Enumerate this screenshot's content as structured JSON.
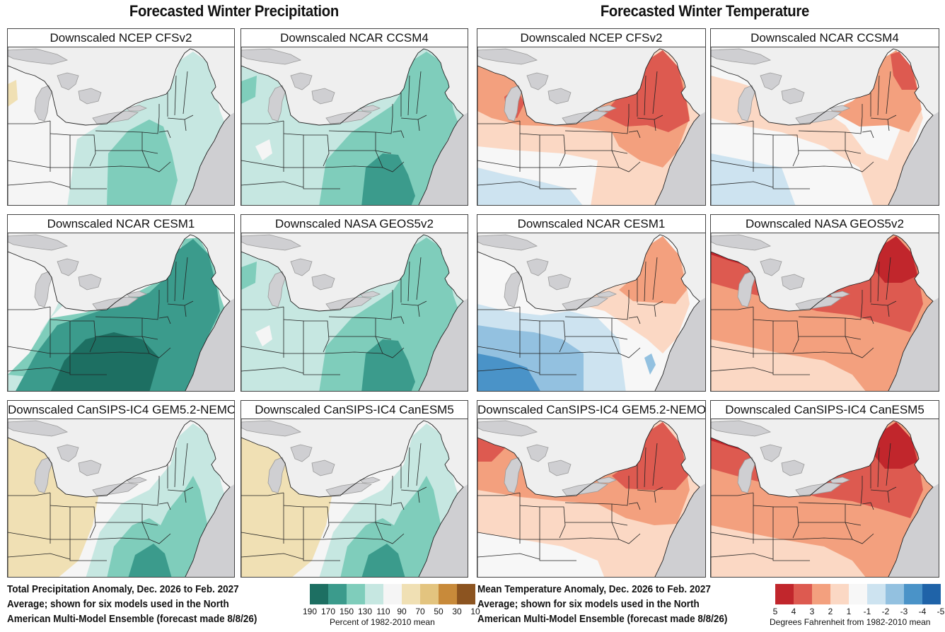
{
  "titles": {
    "precip": "Forecasted Winter Precipitation",
    "temp": "Forecasted Winter Temperature"
  },
  "panels": [
    {
      "label": "Downscaled NCEP CFSv2",
      "variable": "precip",
      "pattern": "precip-weak-wet"
    },
    {
      "label": "Downscaled NCAR CCSM4",
      "variable": "precip",
      "pattern": "precip-moderate-wet"
    },
    {
      "label": "Downscaled NCEP CFSv2",
      "variable": "temp",
      "pattern": "temp-warm-northeast"
    },
    {
      "label": "Downscaled NCAR CCSM4",
      "variable": "temp",
      "pattern": "temp-mild"
    },
    {
      "label": "Downscaled NCAR CESM1",
      "variable": "precip",
      "pattern": "precip-strong-wet"
    },
    {
      "label": "Downscaled NASA GEOS5v2",
      "variable": "precip",
      "pattern": "precip-moderate-wet"
    },
    {
      "label": "Downscaled NCAR CESM1",
      "variable": "temp",
      "pattern": "temp-cool-southwest"
    },
    {
      "label": "Downscaled NASA GEOS5v2",
      "variable": "temp",
      "pattern": "temp-very-warm"
    },
    {
      "label": "Downscaled CanSIPS-IC4 GEM5.2-NEMO",
      "variable": "precip",
      "pattern": "precip-dry-west-wet-east"
    },
    {
      "label": "Downscaled CanSIPS-IC4 CanESM5",
      "variable": "precip",
      "pattern": "precip-dry-west-wet-east"
    },
    {
      "label": "Downscaled CanSIPS-IC4 GEM5.2-NEMO",
      "variable": "temp",
      "pattern": "temp-warm"
    },
    {
      "label": "Downscaled CanSIPS-IC4 CanESM5",
      "variable": "temp",
      "pattern": "temp-very-warm"
    }
  ],
  "captions": {
    "precip": [
      "Total Precipitation Anomaly, Dec. 2026 to Feb. 2027",
      "Average; shown for six models used in the North",
      "American Multi-Model Ensemble (forecast made 8/8/26)"
    ],
    "temp": [
      "Mean Temperature Anomaly, Dec. 2026 to Feb. 2027",
      "Average; shown for six models used in the North",
      "American Multi-Model Ensemble (forecast made 8/8/26)"
    ]
  },
  "legends": {
    "precip": {
      "colors": [
        "#1d6f62",
        "#3b9b8c",
        "#7fcdbb",
        "#c6e7e1",
        "#f5f5f5",
        "#f0e0b4",
        "#e3c47f",
        "#c88a3a",
        "#8c5420"
      ],
      "ticks": [
        "190",
        "170",
        "150",
        "130",
        "110",
        "90",
        "70",
        "50",
        "30",
        "10"
      ],
      "unit": "Percent of 1982-2010 mean"
    },
    "temp": {
      "colors": [
        "#c1262c",
        "#dd5a50",
        "#f3a07e",
        "#fbd8c4",
        "#f7f7f7",
        "#cde3f0",
        "#93c1e0",
        "#4a93c8",
        "#1f63a8"
      ],
      "ticks": [
        "5",
        "4",
        "3",
        "2",
        "1",
        "-1",
        "-2",
        "-3",
        "-4",
        "-5"
      ],
      "unit": "Degrees Fahrenheit from 1982-2010 mean"
    }
  }
}
